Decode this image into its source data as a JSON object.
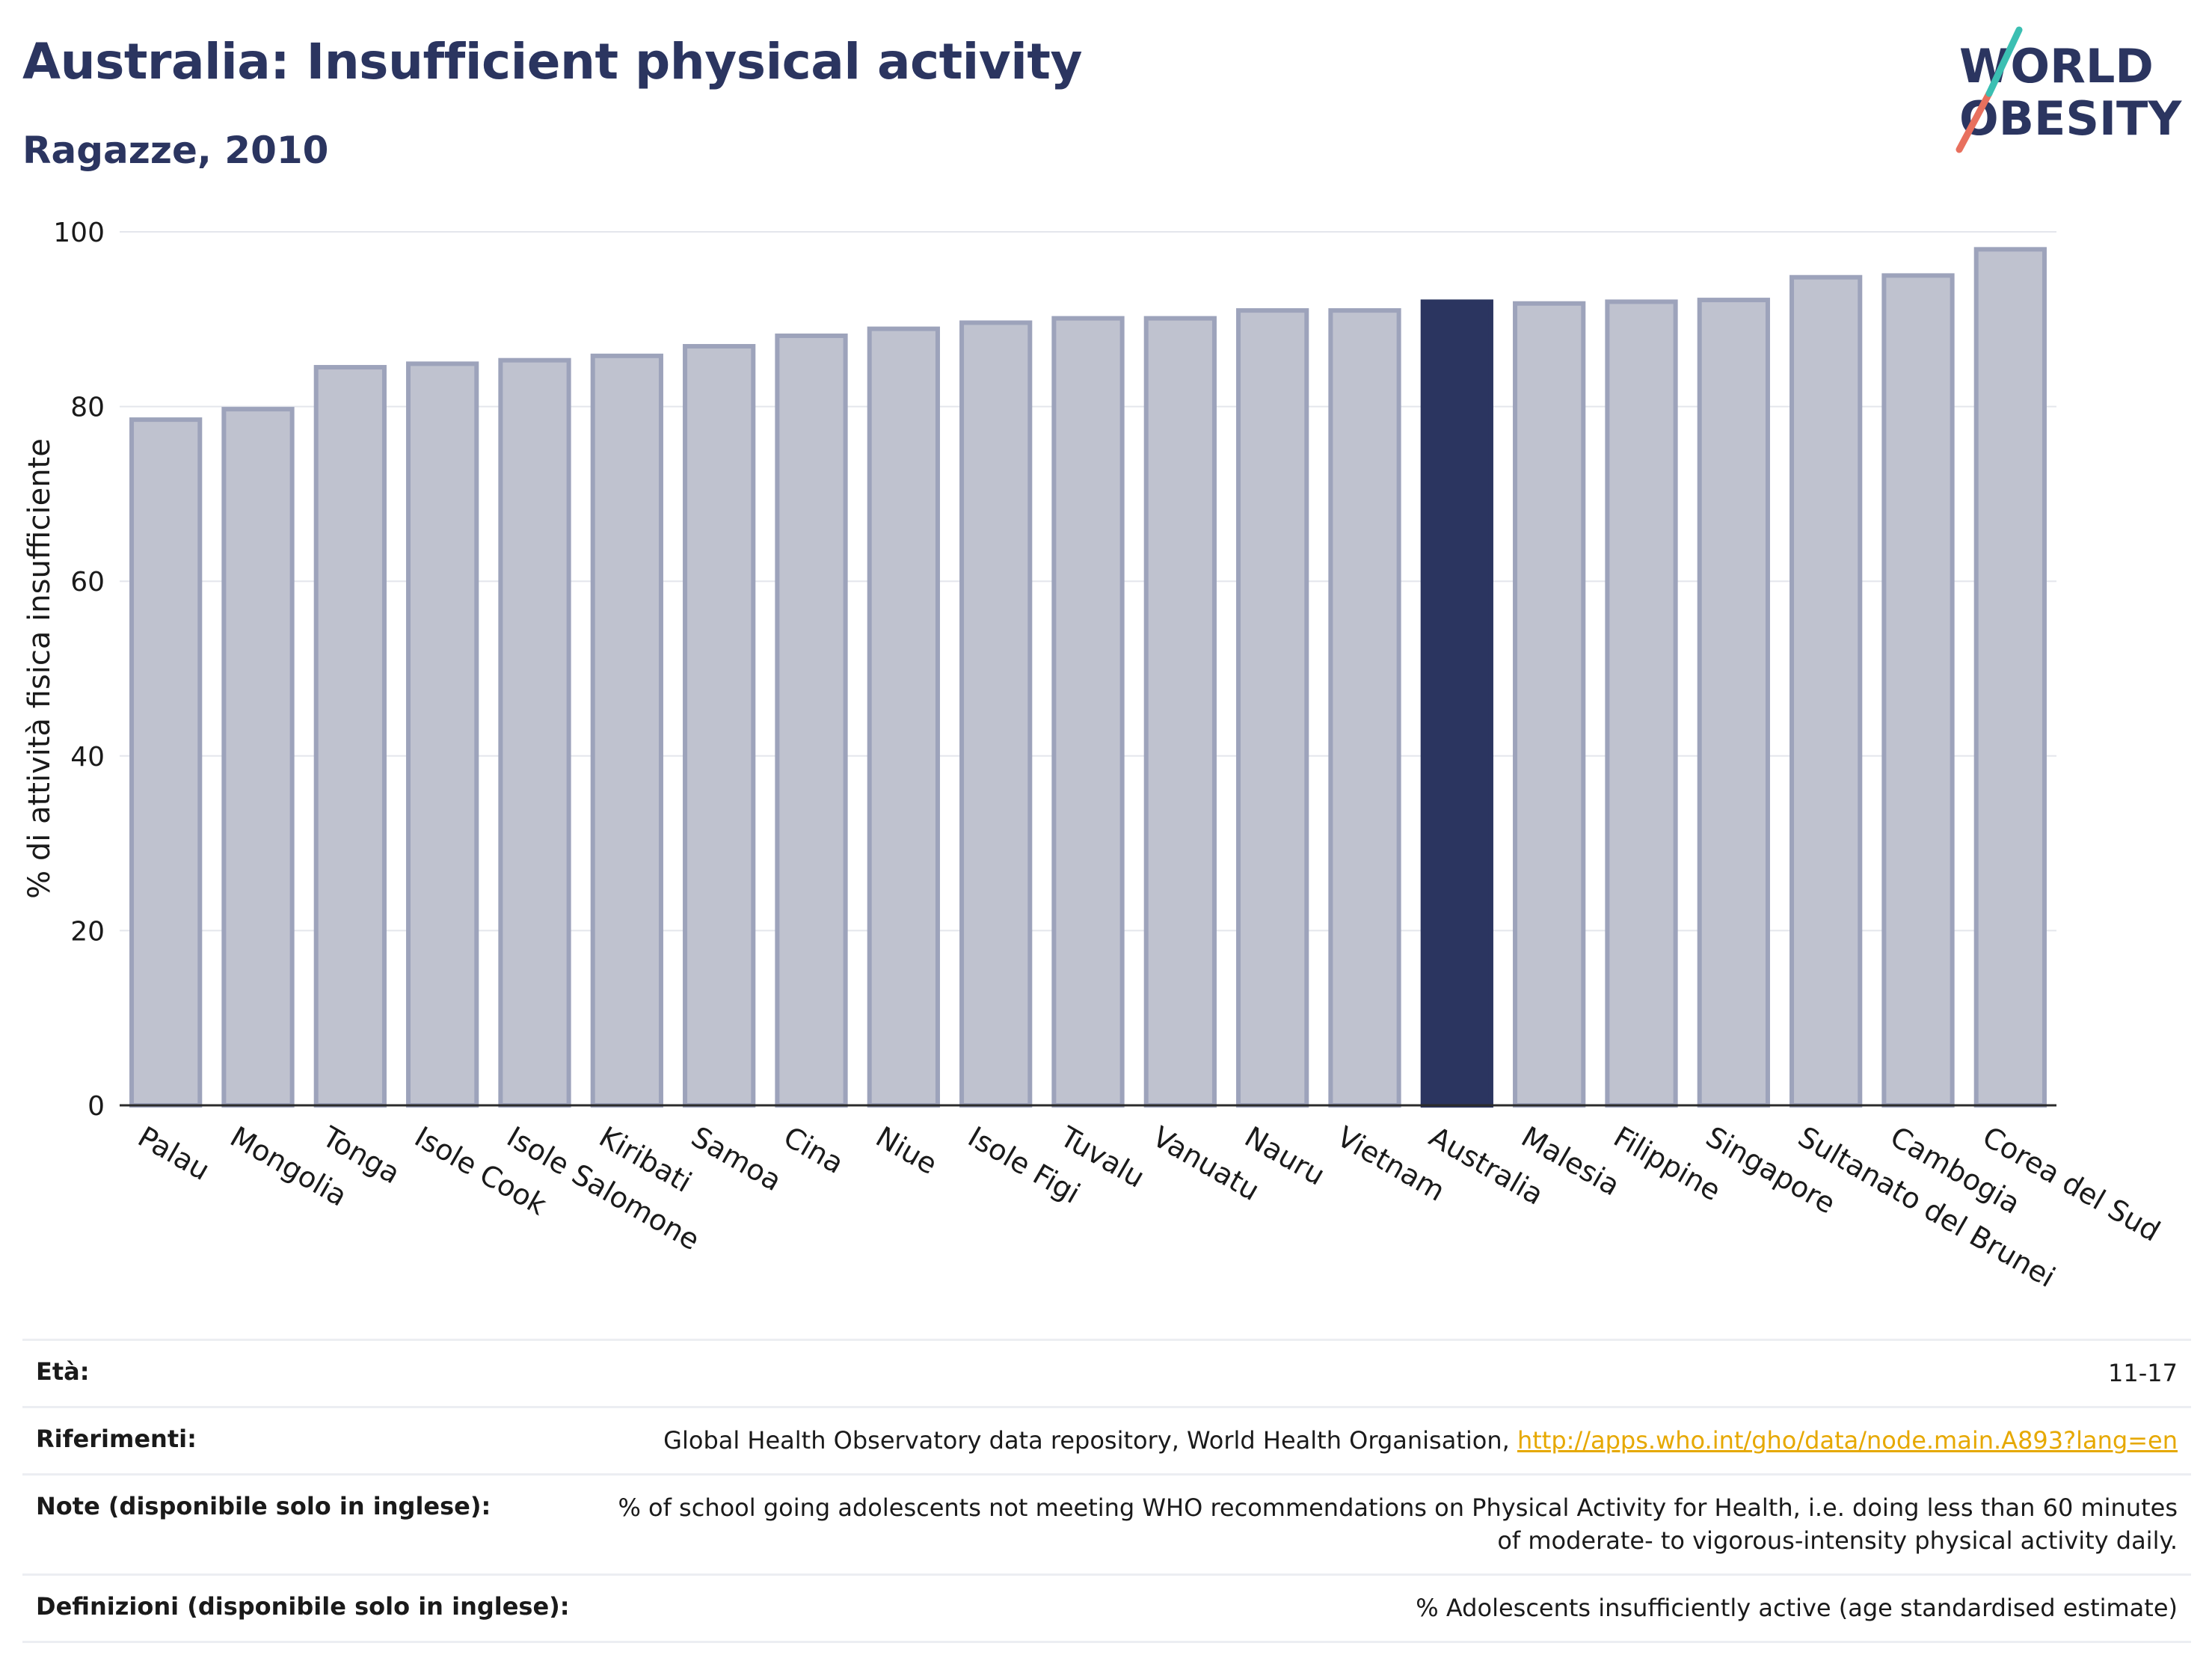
{
  "header": {
    "title": "Australia: Insufficient physical activity",
    "subtitle": "Ragazze, 2010"
  },
  "logo": {
    "line1": "WORLD",
    "line2": "OBESITY"
  },
  "colors": {
    "highlight": "#2b3560",
    "bar": "#bfc2cf",
    "bar_border": "#9da3bb",
    "title": "#2b3560"
  },
  "chart_data": {
    "type": "bar",
    "title": "Australia: Insufficient physical activity",
    "subtitle": "Ragazze, 2010",
    "ylabel": "% di attività fisica insufficiente",
    "xlabel": "",
    "ylim": [
      0,
      100
    ],
    "yticks": [
      0,
      20,
      40,
      60,
      80,
      100
    ],
    "grid": true,
    "highlight": "Australia",
    "categories": [
      "Palau",
      "Mongolia",
      "Tonga",
      "Isole Cook",
      "Isole Salomone",
      "Kiribati",
      "Samoa",
      "Cina",
      "Niue",
      "Isole Figi",
      "Tuvalu",
      "Vanuatu",
      "Nauru",
      "Vietnam",
      "Australia",
      "Malesia",
      "Filippine",
      "Singapore",
      "Sultanato del Brunei",
      "Cambogia",
      "Corea del Sud"
    ],
    "values": [
      78.5,
      79.7,
      84.5,
      84.9,
      85.3,
      85.8,
      86.9,
      88.1,
      88.9,
      89.6,
      90.1,
      90.1,
      91.0,
      91.0,
      92.0,
      91.8,
      92.0,
      92.2,
      94.8,
      95.0,
      98.0
    ]
  },
  "meta": {
    "age_label": "Età:",
    "age_value": "11-17",
    "refs_label": "Riferimenti:",
    "refs_value": "Global Health Observatory data repository, World Health Organisation, ",
    "refs_link": "http://apps.who.int/gho/data/node.main.A893?lang=en",
    "notes_label": "Note (disponibile solo in inglese):",
    "notes_value": "% of school going adolescents not meeting WHO recommendations on Physical Activity for Health, i.e. doing less than 60 minutes of moderate- to vigorous-intensity physical activity daily.",
    "defs_label": "Definizioni (disponibile solo in inglese):",
    "defs_value": "% Adolescents insufficiently active (age standardised estimate)"
  }
}
